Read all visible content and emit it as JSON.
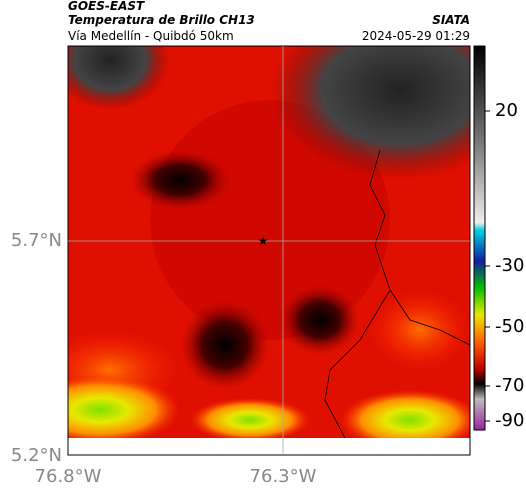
{
  "header": {
    "satellite": "GOES-EAST",
    "product": "Temperatura de Brillo CH13",
    "region": "Vía Medellín - Quibdó 50km",
    "source": "SIATA",
    "timestamp": "2024-05-29 01:29"
  },
  "map": {
    "lat_ticks": [
      "5.7°N",
      "5.2°N"
    ],
    "lon_ticks": [
      "76.8°W",
      "76.3°W"
    ]
  },
  "colorbar": {
    "ticks": [
      20,
      -30,
      -50,
      -70,
      -90
    ]
  }
}
